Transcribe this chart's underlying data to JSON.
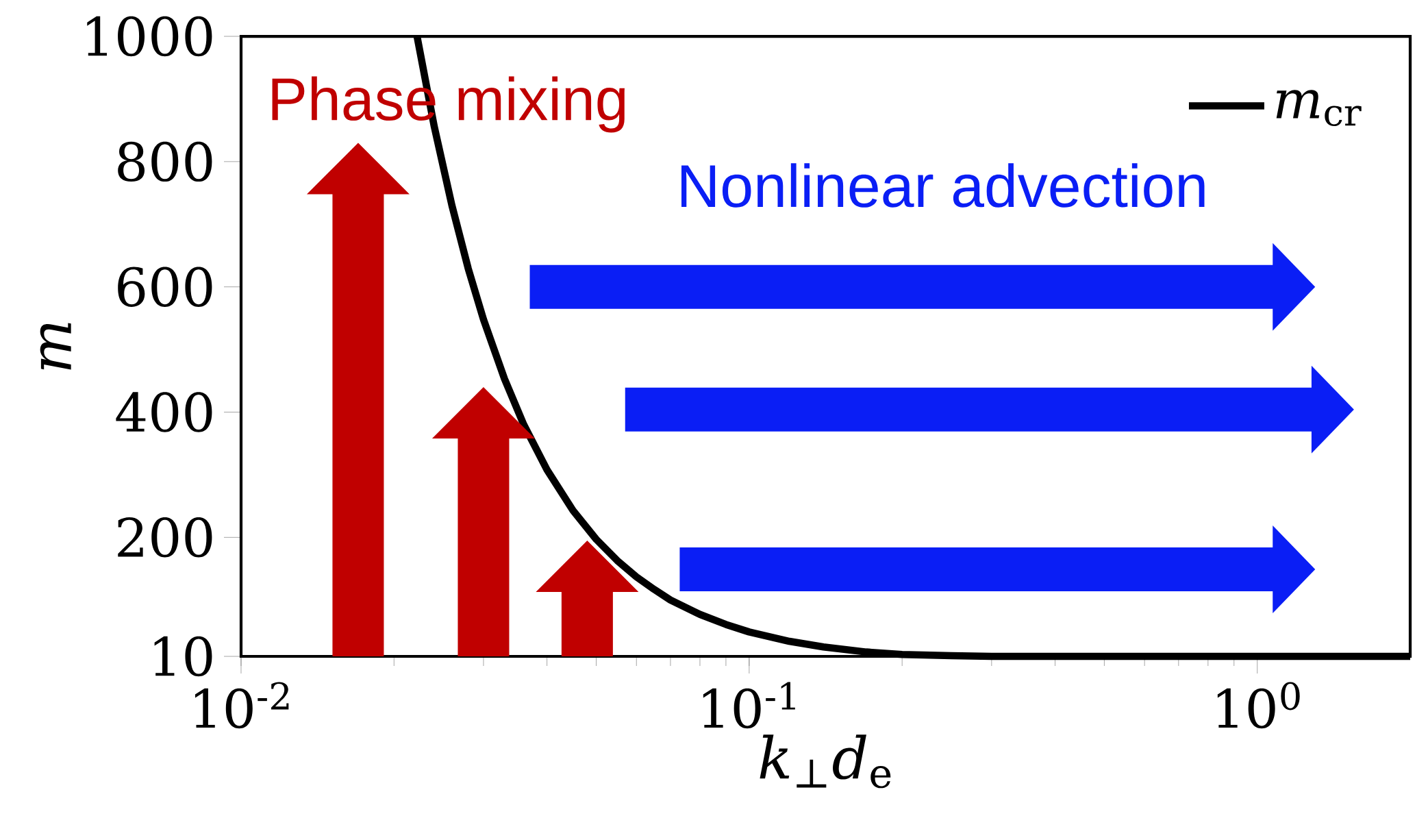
{
  "chart_data": {
    "type": "line",
    "xlabel": "*k*$_{⊥}$*d*$_{e}$",
    "ylabel": "*m*",
    "series": [
      {
        "name": "*m*$_{cr}$",
        "color": "#000000",
        "x": [
          0.0222,
          0.024,
          0.026,
          0.028,
          0.03,
          0.033,
          0.036,
          0.04,
          0.045,
          0.05,
          0.055,
          0.06,
          0.065,
          0.07,
          0.08,
          0.09,
          0.1,
          0.12,
          0.14,
          0.17,
          0.2,
          0.25,
          0.3,
          0.5,
          1,
          2
        ],
        "values": [
          1000,
          856,
          730,
          629,
          548,
          453,
          380,
          308,
          243,
          197,
          163,
          137,
          117,
          100,
          77,
          61,
          49,
          34,
          25,
          17,
          13,
          11,
          10,
          10,
          10,
          10
        ]
      }
    ],
    "log": "x",
    "xlim": [
      0.01,
      2
    ],
    "ylim": [
      10,
      1000
    ],
    "xticks": [
      {
        "value": 0.01,
        "label": "10$^{-2}$"
      },
      {
        "value": 0.1,
        "label": "10$^{-1}$"
      },
      {
        "value": 1,
        "label": "10$^{0}$"
      }
    ],
    "yticks": [
      10,
      200,
      400,
      600,
      800,
      1000
    ],
    "grid": false,
    "legend": "top right",
    "marker": "none",
    "line_style": "solid",
    "annotations": [
      "Phase mixing",
      "Nonlinear advection"
    ]
  }
}
